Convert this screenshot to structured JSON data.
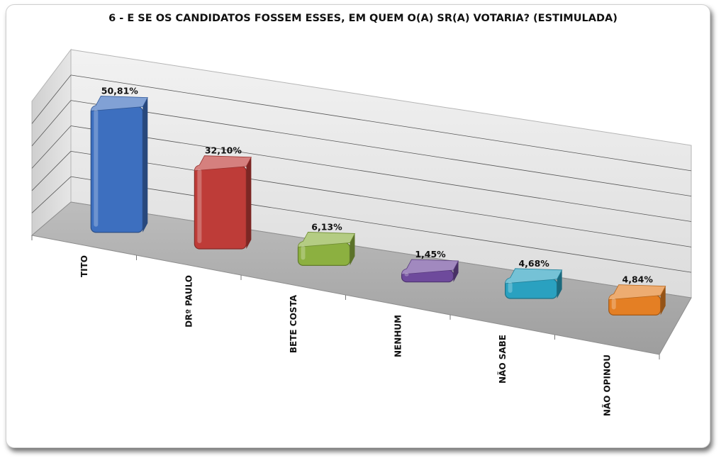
{
  "chart_data": {
    "type": "bar",
    "title": "6 - E SE OS CANDIDATOS FOSSEM ESSES, EM QUEM O(A) SR(A) VOTARIA? (ESTIMULADA)",
    "categories": [
      "TITO",
      "DRº PAULO",
      "BETE COSTA",
      "NENHUM",
      "NÃO SABE",
      "NÃO OPINOU"
    ],
    "values": [
      50.81,
      32.1,
      6.13,
      1.45,
      4.68,
      4.84
    ],
    "value_labels": [
      "50,81%",
      "32,10%",
      "6,13%",
      "1,45%",
      "4,68%",
      "4,84%"
    ],
    "colors": [
      "#3d6fbf",
      "#be3c38",
      "#8cb040",
      "#6e4a9c",
      "#2aa1c0",
      "#e47f24"
    ],
    "ylim": [
      0,
      60
    ],
    "grid": true,
    "legend": "none",
    "style": "3d"
  }
}
